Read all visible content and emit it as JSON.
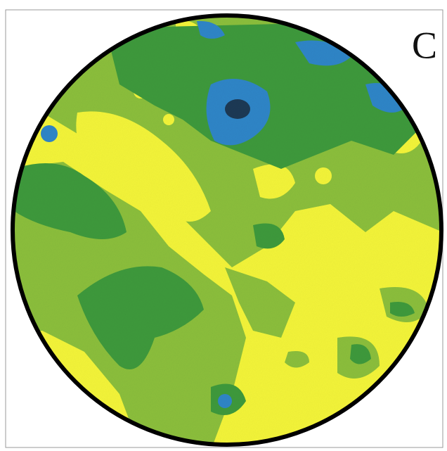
{
  "panel": {
    "label": "C"
  }
}
